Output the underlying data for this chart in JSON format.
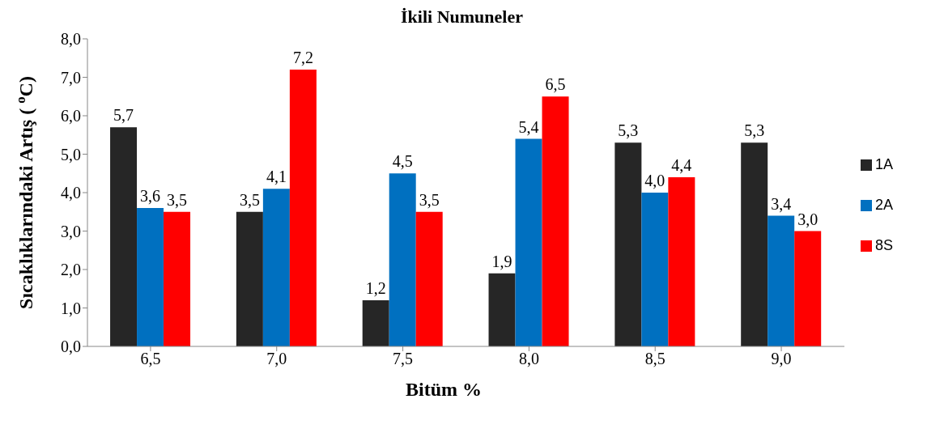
{
  "chart_data": {
    "type": "bar",
    "title": "İkili Numuneler",
    "xlabel": "Bitüm %",
    "ylabel": "Sıcaklıklarındaki Artış ( $^{o}$C)",
    "categories": [
      "6,5",
      "7,0",
      "7,5",
      "8,0",
      "8,5",
      "9,0"
    ],
    "series": [
      {
        "name": "1A",
        "color": "#262626",
        "values": [
          5.7,
          3.5,
          1.2,
          1.9,
          5.3,
          5.3
        ],
        "value_labels": [
          "5,7",
          "3,5",
          "1,2",
          "1,9",
          "5,3",
          "5,3"
        ]
      },
      {
        "name": "2A",
        "color": "#0070c0",
        "values": [
          3.6,
          4.1,
          4.5,
          5.4,
          4.0,
          3.4
        ],
        "value_labels": [
          "3,6",
          "4,1",
          "4,5",
          "5,4",
          "4,0",
          "3,4"
        ]
      },
      {
        "name": "8S",
        "color": "#ff0000",
        "values": [
          3.5,
          7.2,
          3.5,
          6.5,
          4.4,
          3.0
        ],
        "value_labels": [
          "3,5",
          "7,2",
          "3,5",
          "6,5",
          "4,4",
          "3,0"
        ]
      }
    ],
    "ylim": [
      0,
      8
    ],
    "yticks": [
      {
        "value": 0,
        "label": "0,0"
      },
      {
        "value": 1,
        "label": "1,0"
      },
      {
        "value": 2,
        "label": "2,0"
      },
      {
        "value": 3,
        "label": "3,0"
      },
      {
        "value": 4,
        "label": "4,0"
      },
      {
        "value": 5,
        "label": "5,0"
      },
      {
        "value": 6,
        "label": "6,0"
      },
      {
        "value": 7,
        "label": "7,0"
      },
      {
        "value": 8,
        "label": "8,0"
      }
    ],
    "grid": false,
    "legend": "right"
  }
}
